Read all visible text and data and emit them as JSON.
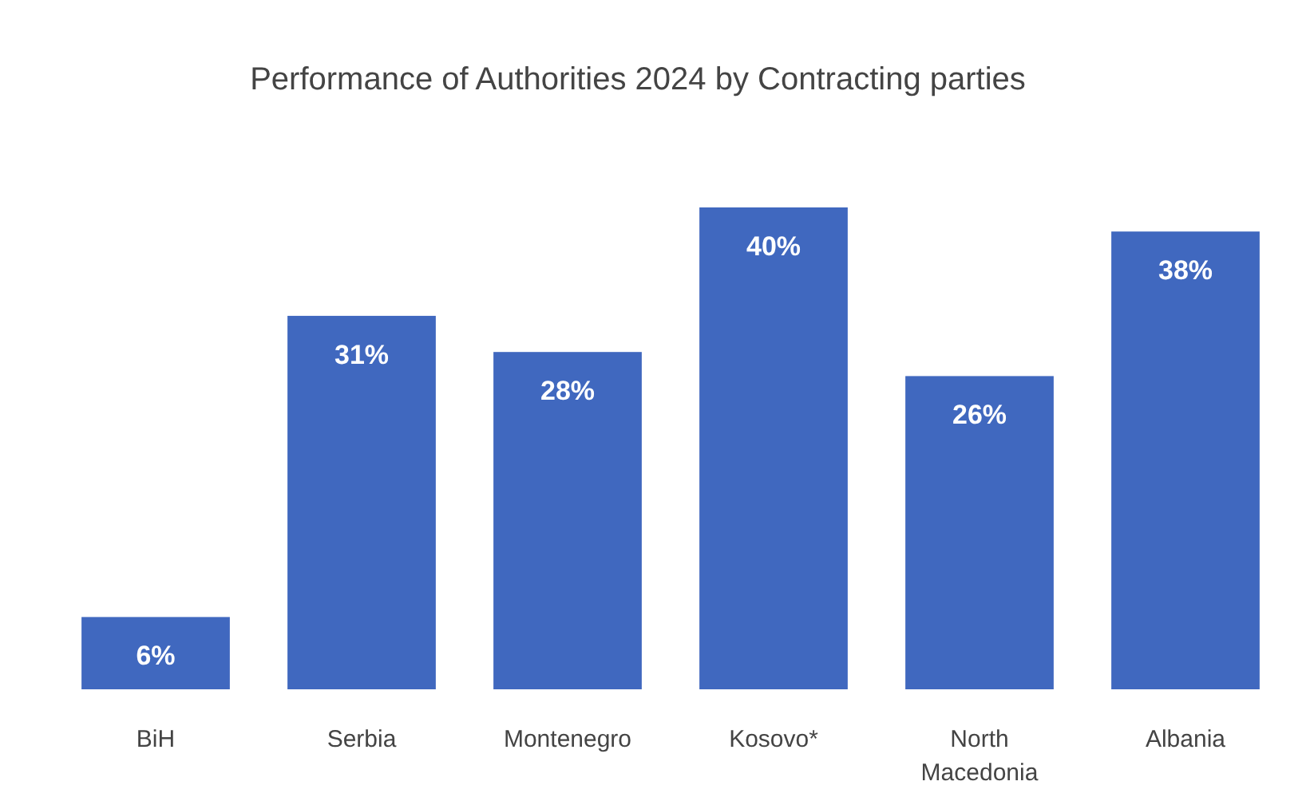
{
  "chart_data": {
    "type": "bar",
    "title": "Performance of Authorities 2024 by Contracting parties",
    "categories": [
      "BiH",
      "Serbia",
      "Montenegro",
      "Kosovo*",
      "North Macedonia",
      "Albania"
    ],
    "values": [
      6,
      31,
      28,
      40,
      26,
      38
    ],
    "value_labels": [
      "6%",
      "31%",
      "28%",
      "40%",
      "26%",
      "38%"
    ],
    "color": "#4068bf"
  }
}
